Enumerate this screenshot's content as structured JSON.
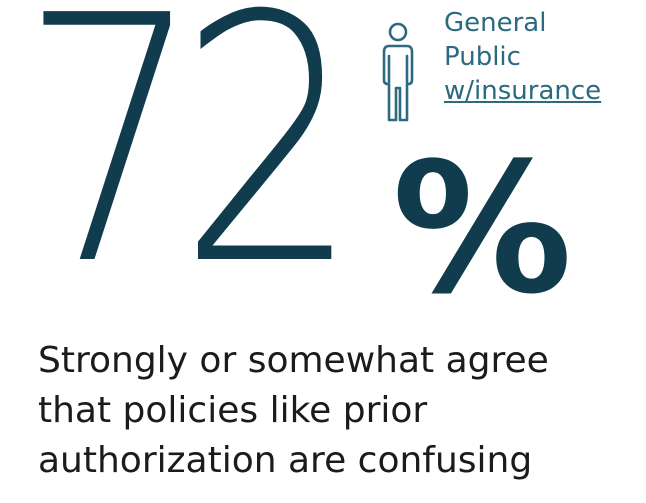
{
  "stat": {
    "number": "72",
    "percent": "%"
  },
  "audience": {
    "line1": "General",
    "line2": "Public",
    "line3": "w/insurance",
    "icon": "person-icon"
  },
  "caption": {
    "line1": "Strongly or somewhat agree",
    "line2": "that policies like prior",
    "line3": "authorization are confusing"
  },
  "colors": {
    "stat": "#113c4e",
    "audience": "#2c6a80",
    "caption": "#1b1b1b"
  }
}
